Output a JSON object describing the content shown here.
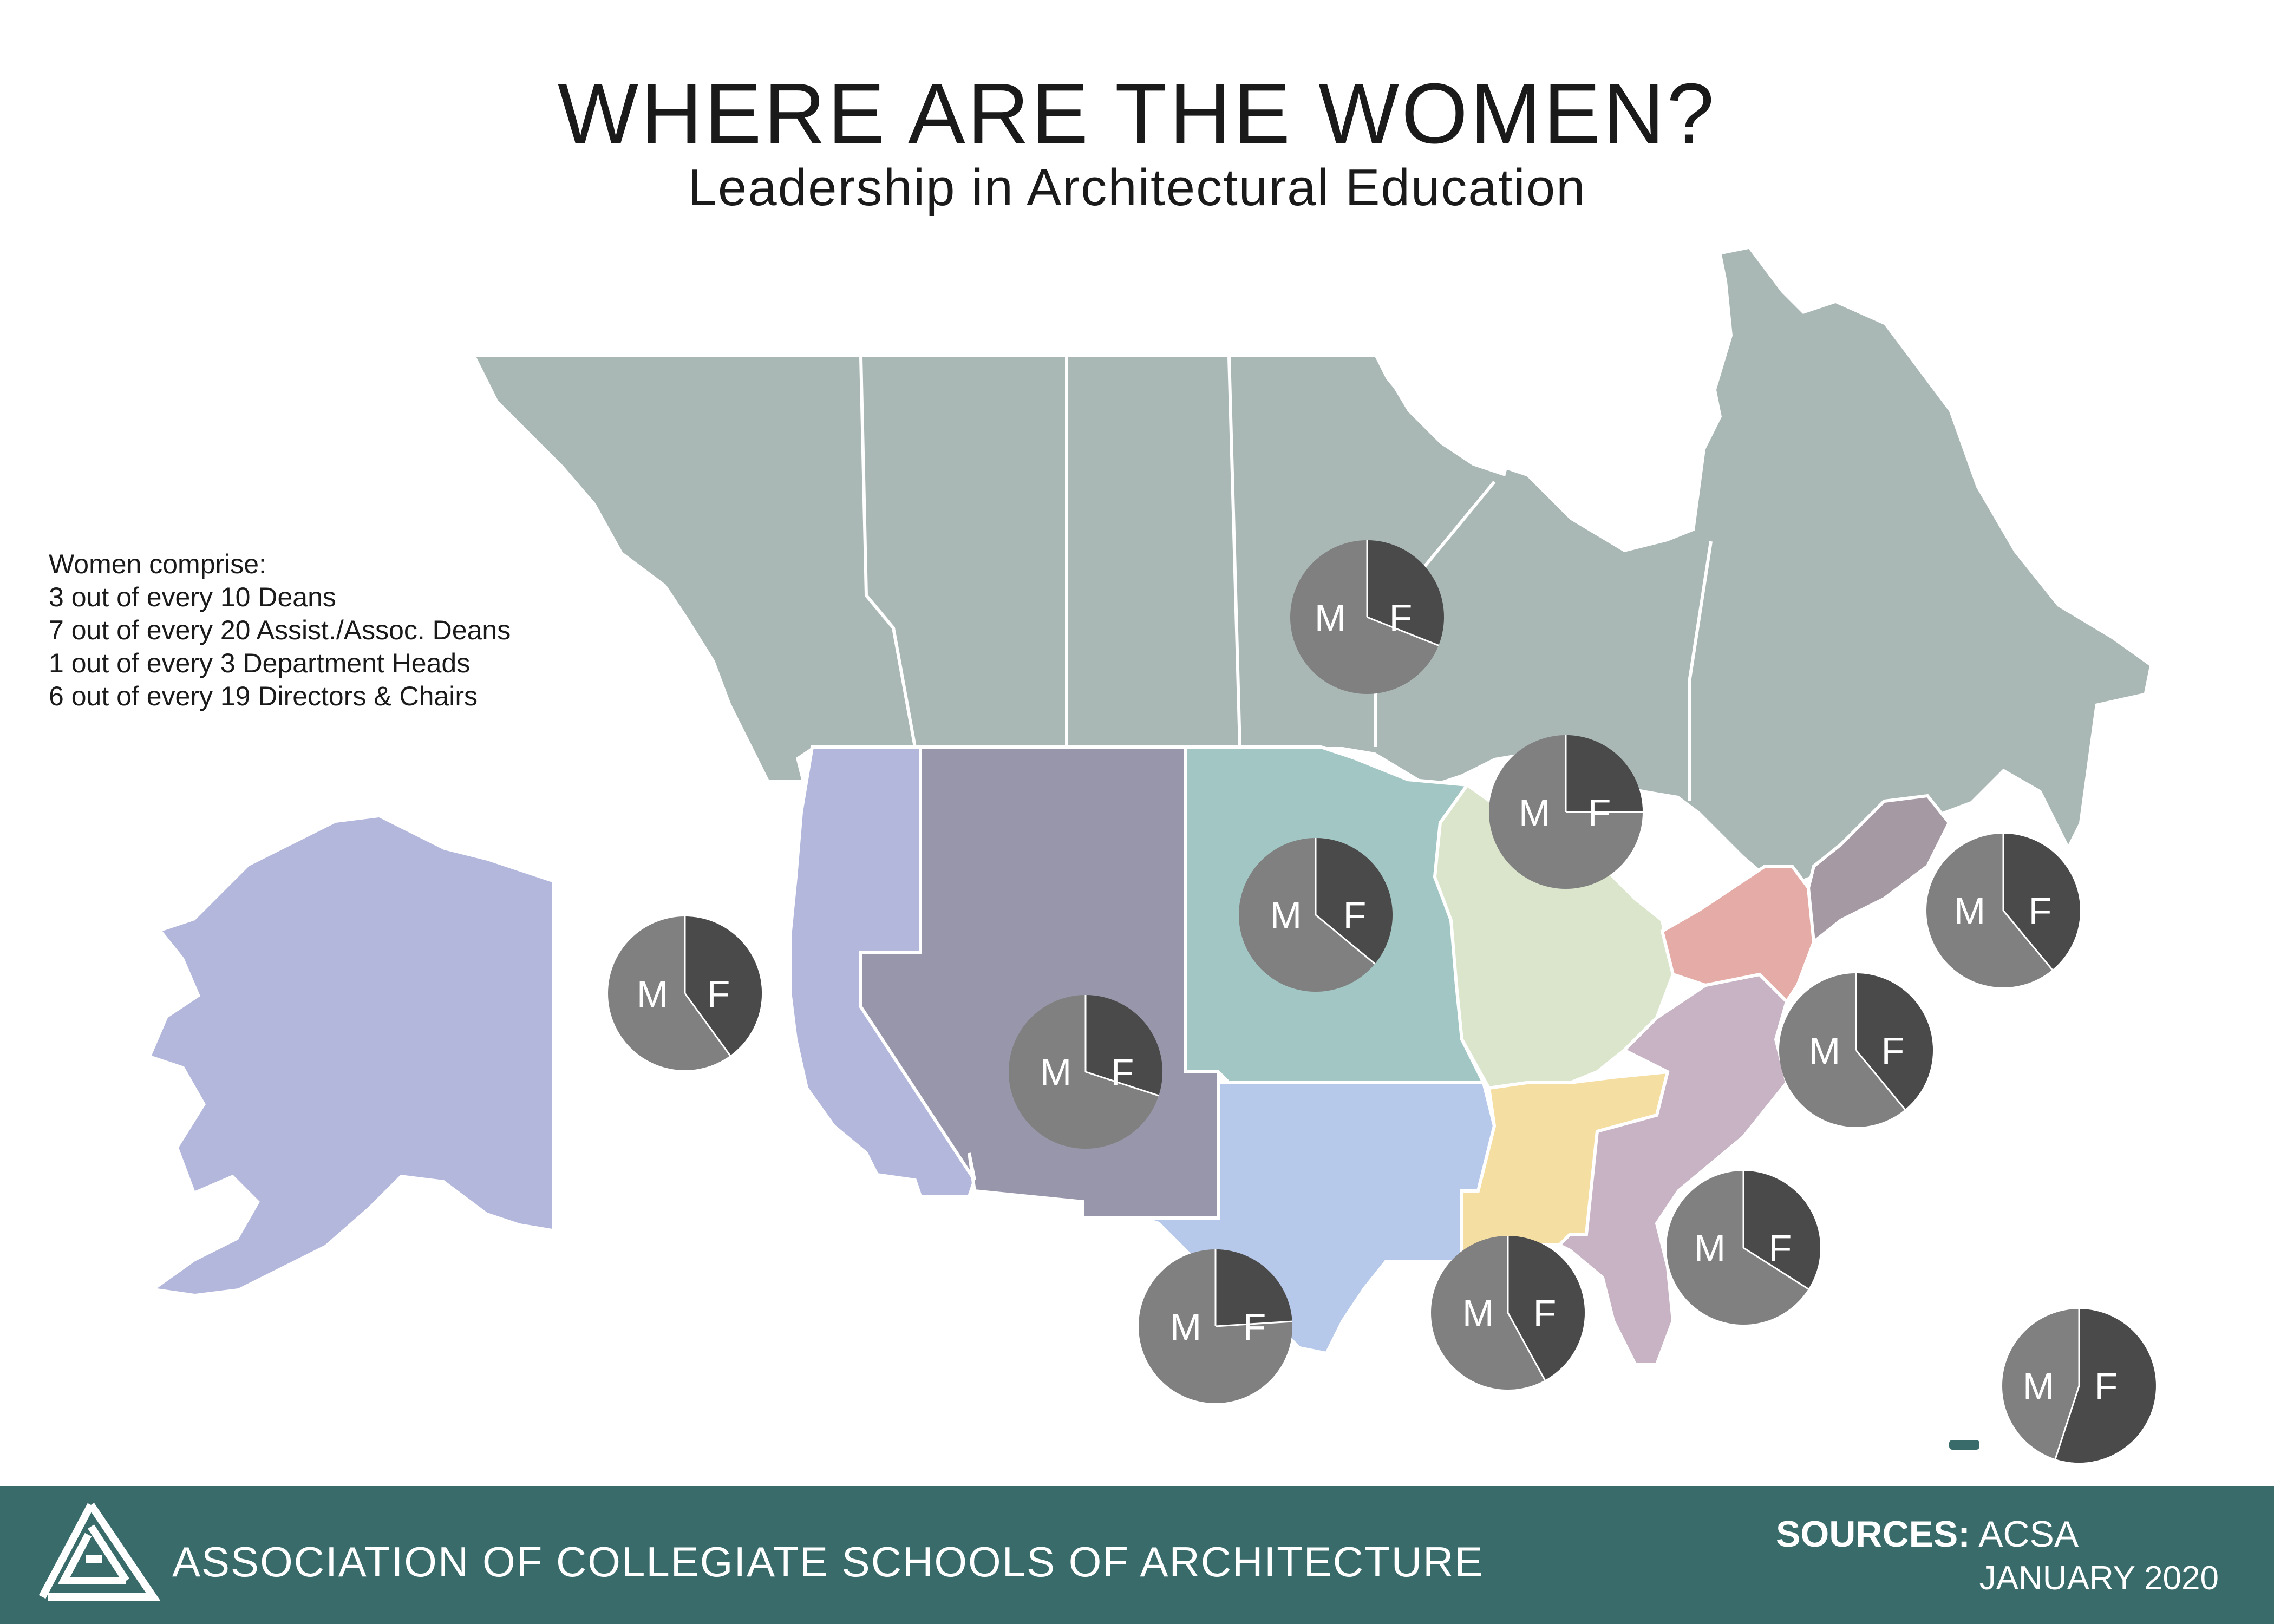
{
  "header": {
    "title": "WHERE ARE THE WOMEN?",
    "subtitle": "Leadership in Architectural Education"
  },
  "stats": {
    "intro": "Women comprise:",
    "lines": [
      "3 out of every 10 Deans",
      "7 out of every 20 Assist./Assoc. Deans",
      "1 out of every 3 Department Heads",
      "6 out of every 19 Directors & Chairs"
    ]
  },
  "pies": {
    "male_label": "M",
    "female_label": "F",
    "male_color": "#808080",
    "female_color": "#4a4a4a",
    "regions": [
      {
        "region": "canada-west",
        "female_share": 0.31
      },
      {
        "region": "canada-east",
        "female_share": 0.25
      },
      {
        "region": "pacific",
        "female_share": 0.4
      },
      {
        "region": "mountain",
        "female_share": 0.3
      },
      {
        "region": "plains",
        "female_share": 0.36
      },
      {
        "region": "south-central",
        "female_share": 0.24
      },
      {
        "region": "gulf-south",
        "female_share": 0.42
      },
      {
        "region": "southeast",
        "female_share": 0.34
      },
      {
        "region": "mid-atlantic",
        "female_share": 0.39
      },
      {
        "region": "new-england",
        "female_share": 0.39
      },
      {
        "region": "puerto-rico",
        "female_share": 0.55
      }
    ]
  },
  "map_colors": {
    "canada": "#a9b7b5",
    "pacific": "#b3b7db",
    "mountain": "#9896aa",
    "plains": "#a2c6c4",
    "great_lakes": "#dae5cb",
    "south_central": "#b7c9ea",
    "gulf_south": "#f5dea2",
    "southeast": "#c7b3c3",
    "northeast": "#e5aca7",
    "new_england": "#a59aa3"
  },
  "footer": {
    "org_name": "ASSOCIATION OF COLLEGIATE SCHOOLS OF ARCHITECTURE",
    "sources_label": "SOURCES:",
    "sources_value": "ACSA",
    "date": "JANUARY 2020",
    "color": "#3a6b6b"
  }
}
